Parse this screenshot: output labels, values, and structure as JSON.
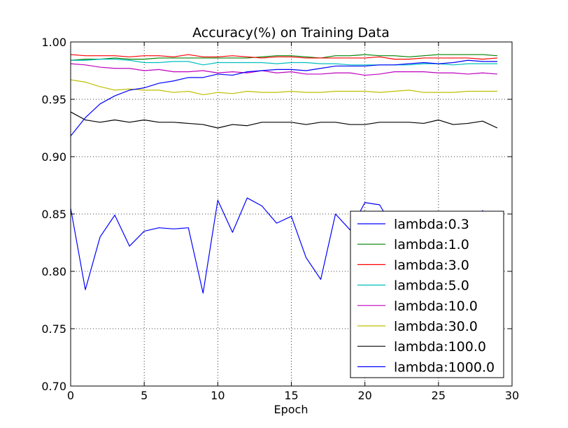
{
  "chart_data": {
    "type": "line",
    "title": "Accuracy(%) on Training Data",
    "xlabel": "Epoch",
    "ylabel": "",
    "xlim": [
      0,
      30
    ],
    "ylim": [
      0.7,
      1.0
    ],
    "xticks": [
      "0",
      "5",
      "10",
      "15",
      "20",
      "25",
      "30"
    ],
    "yticks": [
      "0.70",
      "0.75",
      "0.80",
      "0.85",
      "0.90",
      "0.95",
      "1.00"
    ],
    "grid": true,
    "legend_position": "lower-right",
    "x": [
      0,
      1,
      2,
      3,
      4,
      5,
      6,
      7,
      8,
      9,
      10,
      11,
      12,
      13,
      14,
      15,
      16,
      17,
      18,
      19,
      20,
      21,
      22,
      23,
      24,
      25,
      26,
      27,
      28,
      29
    ],
    "series": [
      {
        "name": "lambda:0.3",
        "color": "#0000ff",
        "values": [
          0.855,
          0.784,
          0.83,
          0.849,
          0.822,
          0.835,
          0.838,
          0.837,
          0.838,
          0.781,
          0.862,
          0.834,
          0.864,
          0.857,
          0.842,
          0.848,
          0.812,
          0.793,
          0.85,
          0.836,
          0.86,
          0.858,
          0.836,
          0.835,
          0.836,
          0.835,
          0.835,
          0.835,
          0.853,
          0.835
        ]
      },
      {
        "name": "lambda:1.0",
        "color": "#008000",
        "values": [
          0.984,
          0.985,
          0.985,
          0.986,
          0.985,
          0.985,
          0.986,
          0.986,
          0.986,
          0.986,
          0.986,
          0.986,
          0.986,
          0.987,
          0.988,
          0.988,
          0.987,
          0.986,
          0.988,
          0.988,
          0.989,
          0.988,
          0.988,
          0.987,
          0.988,
          0.989,
          0.989,
          0.989,
          0.989,
          0.988
        ]
      },
      {
        "name": "lambda:3.0",
        "color": "#ff0000",
        "values": [
          0.989,
          0.988,
          0.988,
          0.988,
          0.987,
          0.988,
          0.988,
          0.987,
          0.989,
          0.987,
          0.987,
          0.988,
          0.987,
          0.986,
          0.987,
          0.987,
          0.986,
          0.986,
          0.986,
          0.986,
          0.986,
          0.987,
          0.985,
          0.985,
          0.986,
          0.986,
          0.986,
          0.986,
          0.985,
          0.986
        ]
      },
      {
        "name": "lambda:5.0",
        "color": "#00bfbf",
        "values": [
          0.984,
          0.984,
          0.985,
          0.985,
          0.984,
          0.982,
          0.982,
          0.983,
          0.983,
          0.98,
          0.982,
          0.982,
          0.982,
          0.982,
          0.981,
          0.982,
          0.982,
          0.981,
          0.981,
          0.98,
          0.98,
          0.98,
          0.98,
          0.98,
          0.981,
          0.981,
          0.98,
          0.981,
          0.981,
          0.981
        ]
      },
      {
        "name": "lambda:10.0",
        "color": "#bf00bf",
        "values": [
          0.981,
          0.98,
          0.978,
          0.977,
          0.977,
          0.975,
          0.976,
          0.974,
          0.974,
          0.975,
          0.973,
          0.974,
          0.973,
          0.975,
          0.973,
          0.974,
          0.972,
          0.972,
          0.973,
          0.973,
          0.971,
          0.972,
          0.974,
          0.974,
          0.974,
          0.973,
          0.973,
          0.972,
          0.973,
          0.972
        ]
      },
      {
        "name": "lambda:30.0",
        "color": "#bfbf00",
        "values": [
          0.967,
          0.965,
          0.961,
          0.958,
          0.959,
          0.958,
          0.958,
          0.956,
          0.957,
          0.954,
          0.956,
          0.955,
          0.957,
          0.956,
          0.956,
          0.957,
          0.956,
          0.956,
          0.957,
          0.957,
          0.957,
          0.956,
          0.957,
          0.958,
          0.956,
          0.956,
          0.956,
          0.957,
          0.957,
          0.957
        ]
      },
      {
        "name": "lambda:100.0",
        "color": "#000000",
        "values": [
          0.939,
          0.932,
          0.93,
          0.932,
          0.93,
          0.932,
          0.93,
          0.93,
          0.929,
          0.928,
          0.925,
          0.928,
          0.927,
          0.93,
          0.93,
          0.93,
          0.928,
          0.93,
          0.93,
          0.928,
          0.928,
          0.93,
          0.93,
          0.93,
          0.929,
          0.932,
          0.928,
          0.929,
          0.931,
          0.925
        ]
      },
      {
        "name": "lambda:1000.0",
        "color": "#0000ff",
        "values": [
          0.918,
          0.934,
          0.946,
          0.953,
          0.958,
          0.96,
          0.964,
          0.966,
          0.969,
          0.969,
          0.972,
          0.971,
          0.974,
          0.975,
          0.976,
          0.976,
          0.975,
          0.977,
          0.979,
          0.979,
          0.979,
          0.98,
          0.98,
          0.981,
          0.982,
          0.981,
          0.982,
          0.984,
          0.983,
          0.983
        ]
      }
    ]
  }
}
